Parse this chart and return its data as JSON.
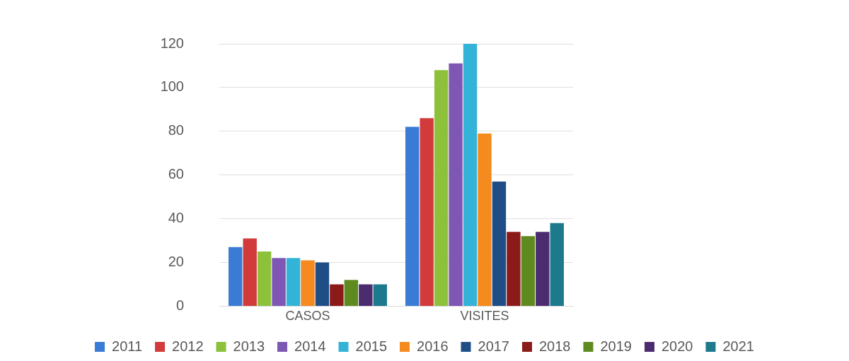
{
  "chart_data": {
    "type": "bar",
    "categories": [
      "CASOS",
      "VISITES"
    ],
    "series": [
      {
        "name": "2011",
        "color": "#3a7bd5",
        "values": [
          27,
          82
        ]
      },
      {
        "name": "2012",
        "color": "#d13b3b",
        "values": [
          31,
          86
        ]
      },
      {
        "name": "2013",
        "color": "#8dc13b",
        "values": [
          25,
          108
        ]
      },
      {
        "name": "2014",
        "color": "#7e57b4",
        "values": [
          22,
          111
        ]
      },
      {
        "name": "2015",
        "color": "#34b3d8",
        "values": [
          22,
          120
        ]
      },
      {
        "name": "2016",
        "color": "#f58a1f",
        "values": [
          21,
          79
        ]
      },
      {
        "name": "2017",
        "color": "#1f4e87",
        "values": [
          20,
          57
        ]
      },
      {
        "name": "2018",
        "color": "#8b1a1a",
        "values": [
          10,
          34
        ]
      },
      {
        "name": "2019",
        "color": "#5e8a1f",
        "values": [
          12,
          32
        ]
      },
      {
        "name": "2020",
        "color": "#4b2c6e",
        "values": [
          10,
          34
        ]
      },
      {
        "name": "2021",
        "color": "#1c7a8c",
        "values": [
          10,
          38
        ]
      }
    ],
    "ylim": [
      0,
      120
    ],
    "yticks": [
      0,
      20,
      40,
      60,
      80,
      100,
      120
    ],
    "grid": "y",
    "legend": "bottom"
  }
}
